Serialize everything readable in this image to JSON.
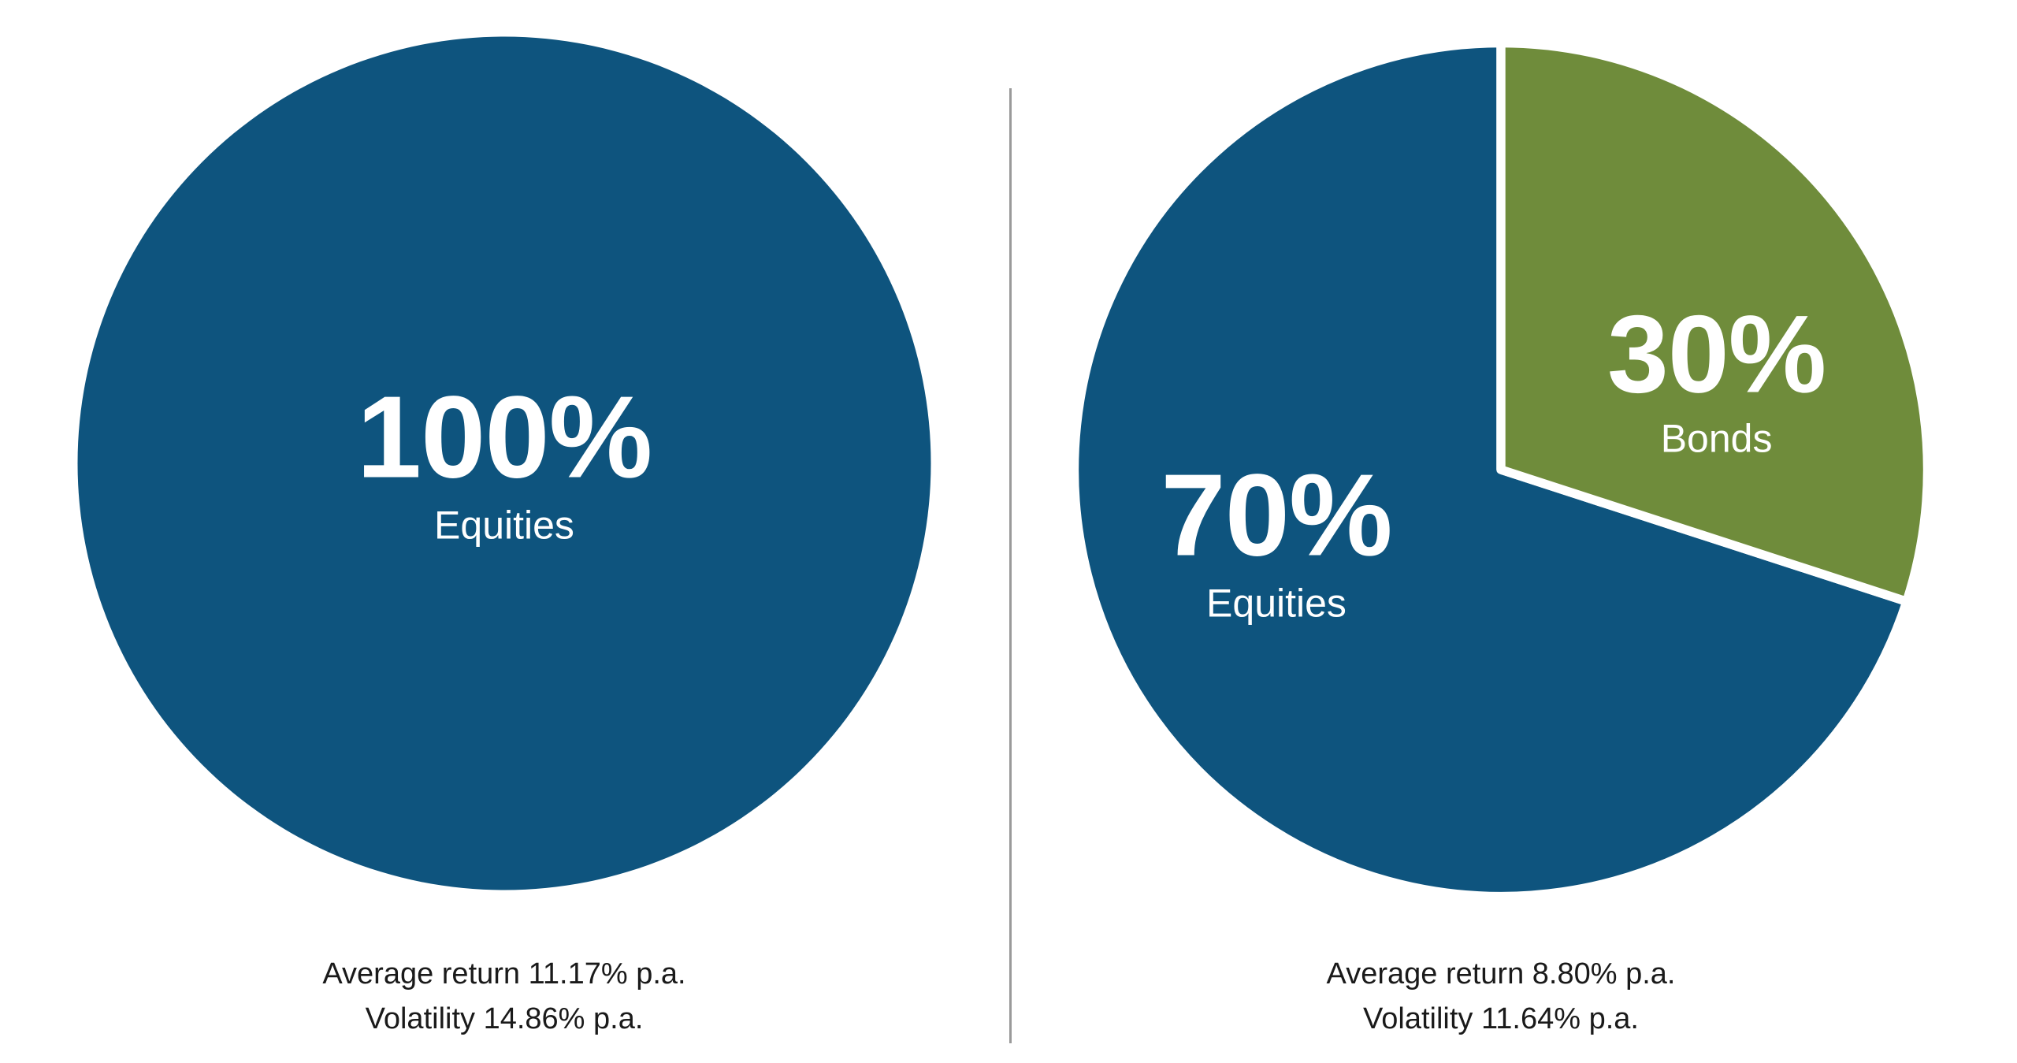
{
  "colors": {
    "equities": "#0e547e",
    "bonds": "#6f8c3b",
    "divider": "#9a9a9a",
    "caption_text": "#1a1a1a",
    "slice_label_text": "#ffffff",
    "background": "#ffffff"
  },
  "chart_data": [
    {
      "type": "pie",
      "title": "",
      "start_angle_deg": 0,
      "legend_position": "inside",
      "slices": [
        {
          "label": "Equities",
          "value": 100,
          "display": "100%",
          "color": "#0e547e"
        }
      ],
      "stats": {
        "average_return": "Average return 11.17% p.a.",
        "volatility": "Volatility 14.86% p.a."
      }
    },
    {
      "type": "pie",
      "title": "",
      "start_angle_deg": 108,
      "legend_position": "inside",
      "slices": [
        {
          "label": "Equities",
          "value": 70,
          "display": "70%",
          "color": "#0e547e"
        },
        {
          "label": "Bonds",
          "value": 30,
          "display": "30%",
          "color": "#6f8c3b"
        }
      ],
      "stats": {
        "average_return": "Average return 8.80% p.a.",
        "volatility": "Volatility 11.64% p.a."
      }
    }
  ]
}
